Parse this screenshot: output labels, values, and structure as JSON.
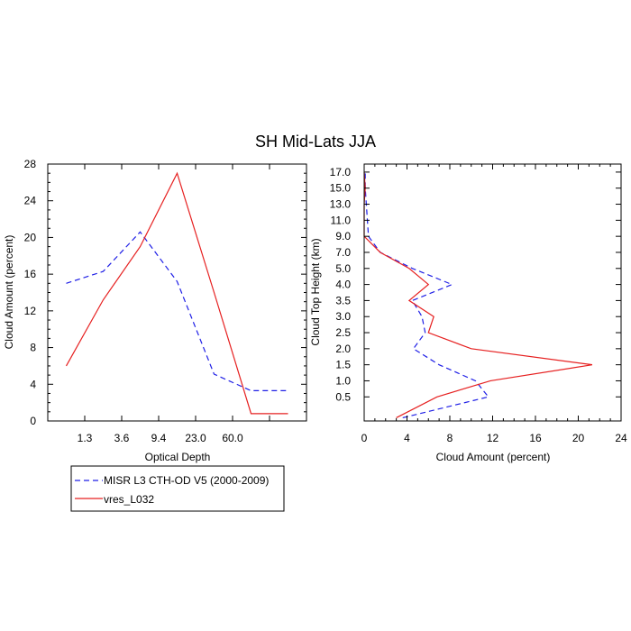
{
  "title": "SH Mid-Lats JJA",
  "colors": {
    "misr": "#1f1fe6",
    "model": "#e62020",
    "axis": "#000000"
  },
  "legend": {
    "items": [
      {
        "label": "MISR L3 CTH-OD V5 (2000-2009)",
        "series_key": "misr",
        "style": "dashed"
      },
      {
        "label": "vres_L032",
        "series_key": "model",
        "style": "solid"
      }
    ]
  },
  "chart_data": [
    {
      "type": "line",
      "panel": "left",
      "xlabel": "Optical Depth",
      "ylabel": "Cloud Amount (percent)",
      "x_categories": [
        "1.3",
        "3.6",
        "9.4",
        "23.0",
        "60.0"
      ],
      "x_tick_labels": [
        "1.3",
        "3.6",
        "9.4",
        "23.0",
        "60.0"
      ],
      "x_bin_range": [
        0,
        7
      ],
      "y_ticks": [
        0,
        4,
        8,
        12,
        16,
        20,
        24,
        28
      ],
      "ylim": [
        0,
        28
      ],
      "y_minor_step": 1,
      "grid": false,
      "series": [
        {
          "name": "MISR L3 CTH-OD V5 (2000-2009)",
          "key": "misr",
          "style": "dashed",
          "x": [
            0,
            1,
            2,
            3,
            4,
            5,
            6
          ],
          "values": [
            15.0,
            16.3,
            20.6,
            15.2,
            5.1,
            3.3,
            3.3
          ]
        },
        {
          "name": "vres_L032",
          "key": "model",
          "style": "solid",
          "x": [
            0,
            1,
            2,
            3,
            4,
            5,
            6
          ],
          "values": [
            6.0,
            13.2,
            19.0,
            27.0,
            14.0,
            0.8,
            0.8
          ]
        }
      ]
    },
    {
      "type": "line",
      "panel": "right",
      "xlabel": "Cloud Amount (percent)",
      "ylabel": "Cloud Top Height (km)",
      "x_ticks": [
        0,
        4,
        8,
        12,
        16,
        20,
        24
      ],
      "xlim": [
        0,
        24
      ],
      "x_minor_step": 1,
      "y_tick_labels": [
        "0.5",
        "1.0",
        "1.5",
        "2.0",
        "2.5",
        "3.0",
        "3.5",
        "4.0",
        "5.0",
        "7.0",
        "9.0",
        "11.0",
        "13.0",
        "15.0",
        "17.0"
      ],
      "y_levels": [
        "0.25",
        "0.5",
        "1.0",
        "1.5",
        "2.0",
        "2.5",
        "3.0",
        "3.5",
        "4.0",
        "5.0",
        "7.0",
        "9.0",
        "11.0",
        "13.0",
        "15.0",
        "17.0"
      ],
      "grid": false,
      "series": [
        {
          "name": "MISR L3 CTH-OD V5 (2000-2009)",
          "key": "misr",
          "style": "dashed",
          "level_index": [
            -0.3,
            1,
            2,
            3,
            4,
            5,
            6,
            7,
            8,
            9,
            10,
            11,
            12,
            13,
            14,
            15
          ],
          "values": [
            3.6,
            11.6,
            10.4,
            7.0,
            4.6,
            5.7,
            5.4,
            4.5,
            8.2,
            4.5,
            1.5,
            0.4,
            0.3,
            0.2,
            0.1,
            0.1
          ]
        },
        {
          "name": "vres_L032",
          "key": "model",
          "style": "solid",
          "level_index": [
            -0.3,
            1,
            2,
            3,
            4,
            5,
            6,
            7,
            8,
            9,
            10,
            11,
            12,
            13,
            14,
            15
          ],
          "values": [
            3.0,
            6.8,
            11.8,
            21.3,
            10.0,
            6.0,
            6.5,
            4.2,
            6.0,
            4.2,
            1.5,
            0.0,
            0.0,
            0.0,
            0.1,
            0.0
          ]
        }
      ]
    }
  ]
}
